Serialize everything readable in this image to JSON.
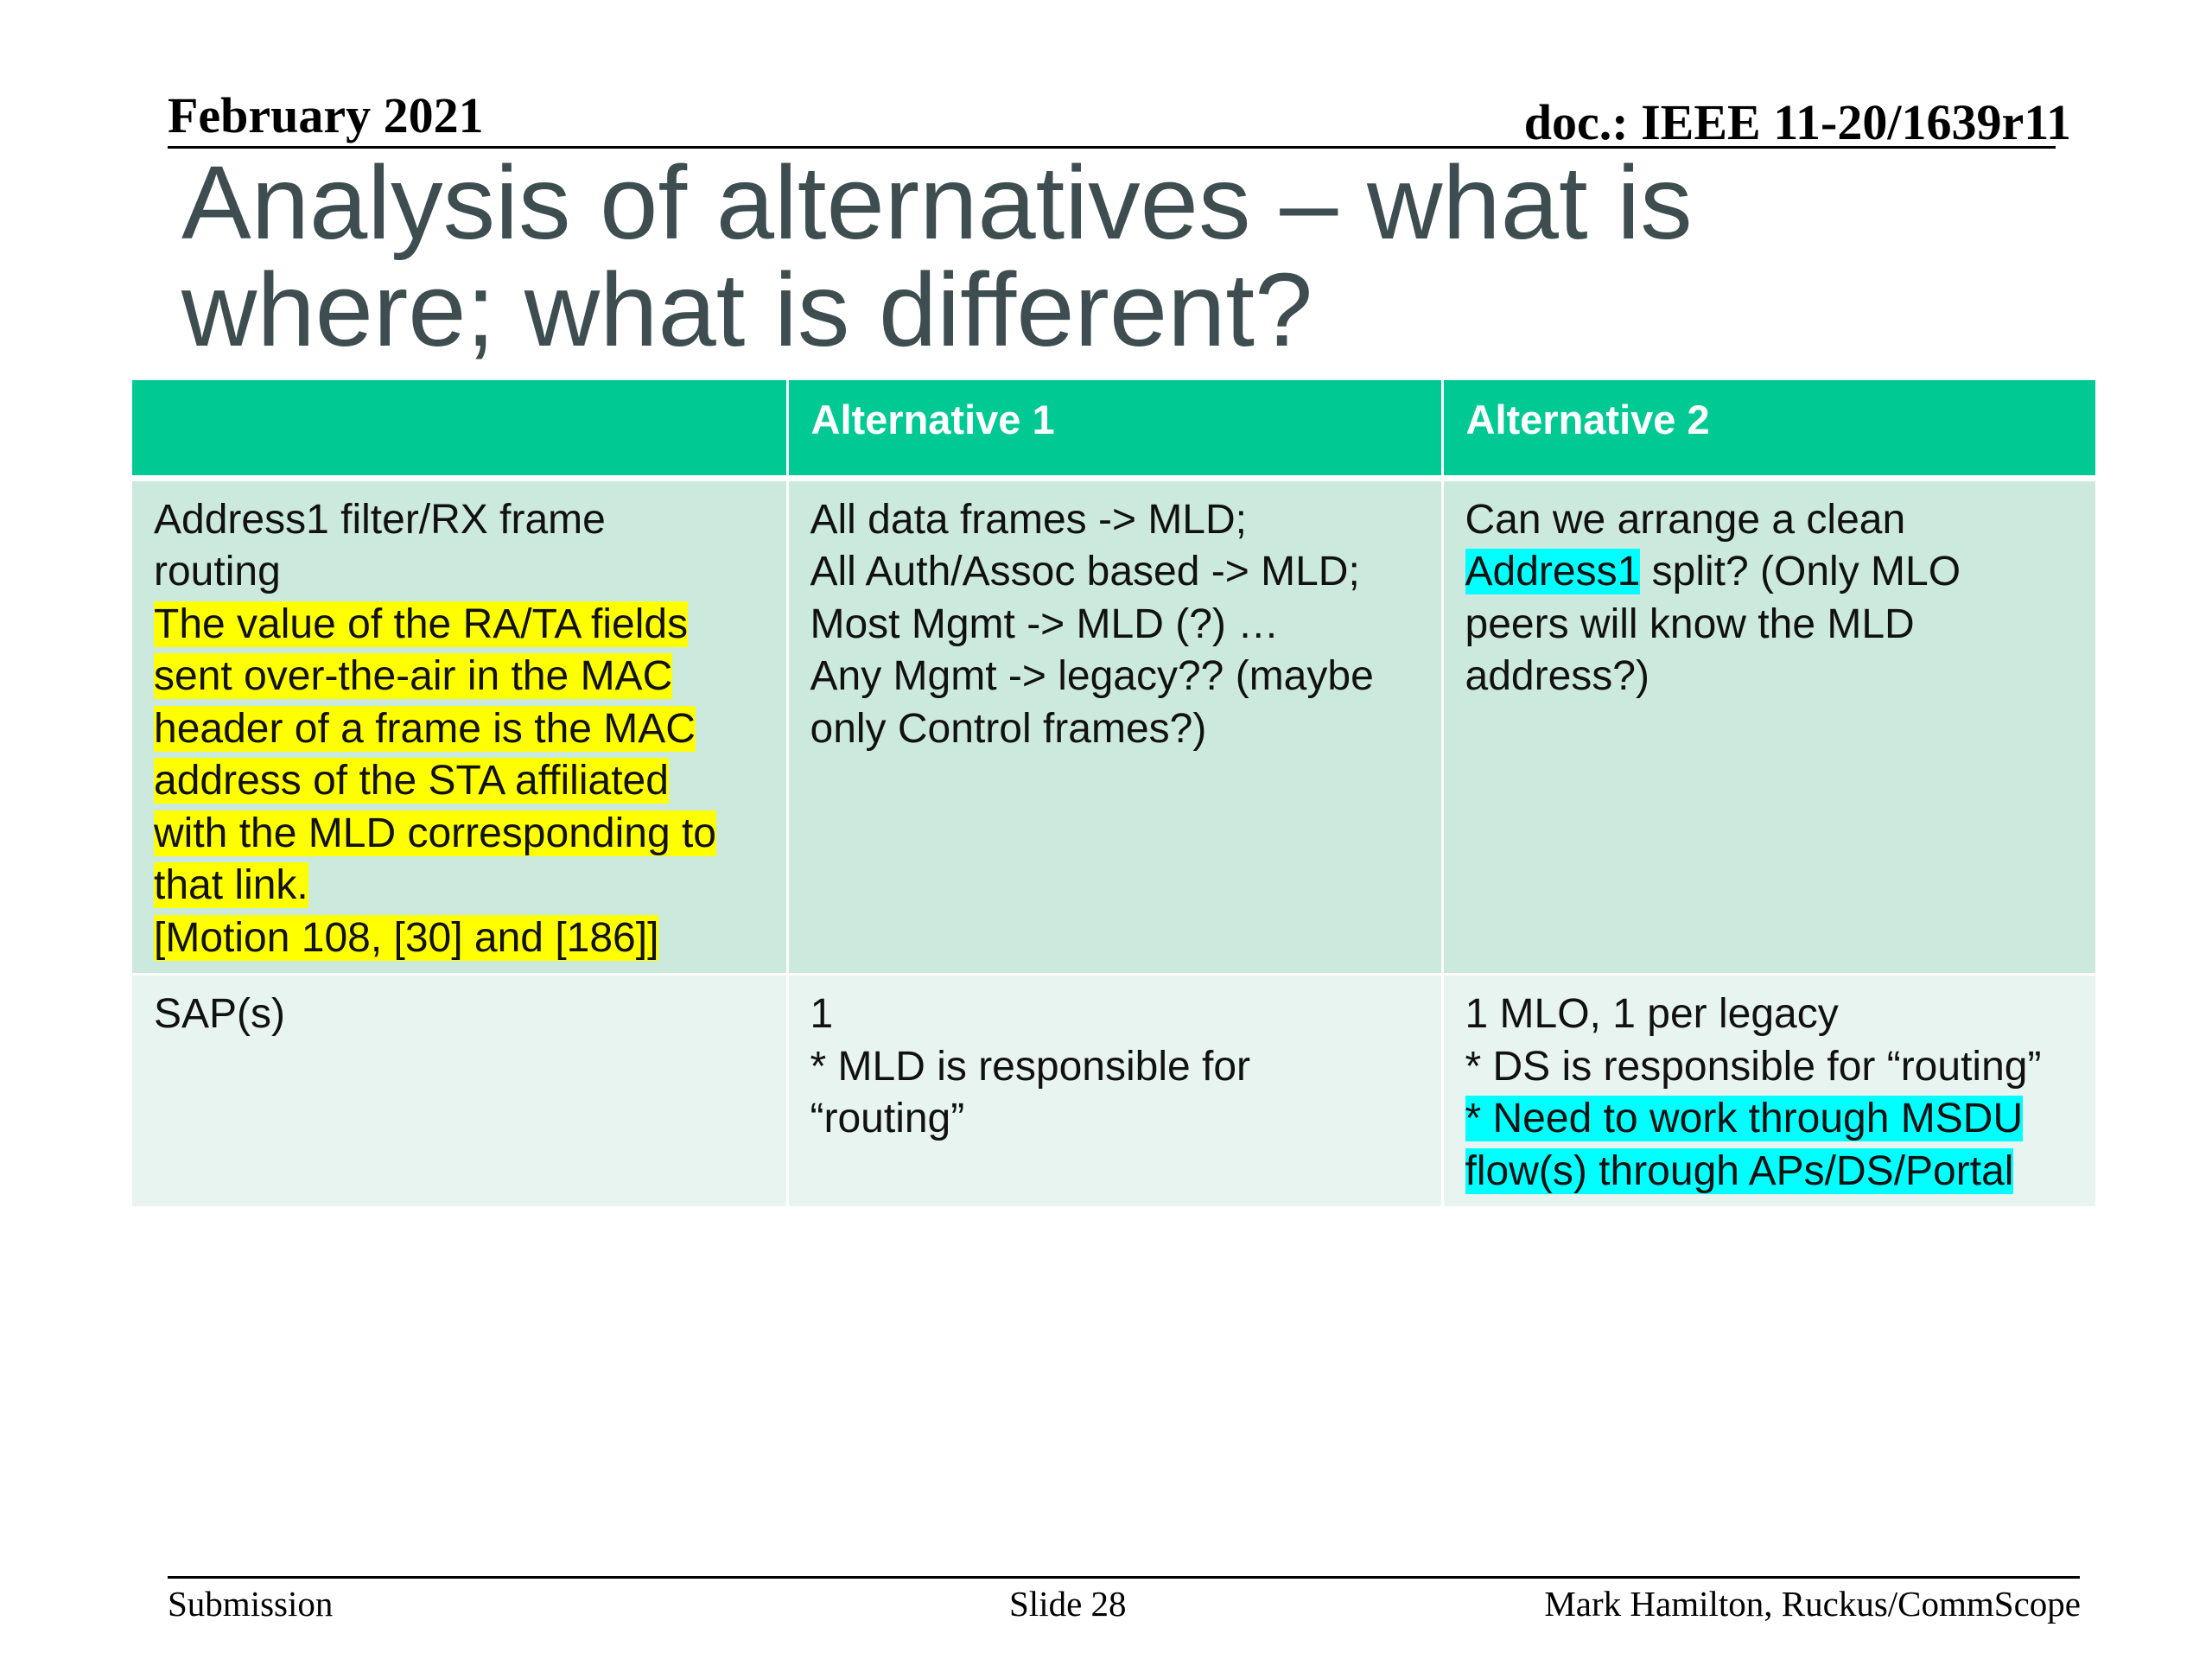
{
  "header": {
    "date": "February 2021",
    "doc_id": "doc.: IEEE 11-20/1639r11"
  },
  "title": {
    "line1": "Analysis of alternatives – what is",
    "line2": "where; what is different?"
  },
  "table": {
    "headers": [
      "",
      "Alternative 1",
      "Alternative 2"
    ],
    "row1": {
      "c1": {
        "lines": [
          "Address1 filter/RX frame",
          "routing"
        ],
        "highlight_lines": [
          "The value of the RA/TA fields ",
          "sent over-the-air in the MAC ",
          "header of a frame is the MAC ",
          "address of the STA affiliated ",
          "with the MLD corresponding to ",
          "that link.",
          "[Motion 108, [30] and [186]]"
        ]
      },
      "c2": {
        "lines": [
          "All data frames -> MLD;",
          "All Auth/Assoc based -> MLD;",
          "Most Mgmt -> MLD (?) …",
          "Any Mgmt -> legacy??  (maybe",
          "only Control frames?)"
        ]
      },
      "c3": {
        "line1": "Can we arrange a clean",
        "line2_highlight": "Address1",
        "line2_rest": " split?  (Only MLO",
        "line3": "peers will know the MLD",
        "line4": "address?)"
      }
    },
    "row2": {
      "c1": {
        "lines": [
          "SAP(s)"
        ]
      },
      "c2": {
        "lines": [
          "1",
          "* MLD is responsible for",
          "“routing”"
        ]
      },
      "c3": {
        "lines": [
          "1 MLO, 1 per legacy",
          "* DS is responsible for “routing”"
        ],
        "highlight_lines": [
          "* Need to work through MSDU ",
          "flow(s) through APs/DS/Portal"
        ]
      }
    }
  },
  "footer": {
    "left": "Submission",
    "center": "Slide 28",
    "right": "Mark Hamilton, Ruckus/CommScope"
  },
  "colors": {
    "header_fill": "#00c994",
    "row1_fill": "#cce9de",
    "row2_fill": "#e8f4ef",
    "highlight_yellow": "#ffff00",
    "highlight_cyan": "#00ffff",
    "title_text": "#3e4e50"
  }
}
